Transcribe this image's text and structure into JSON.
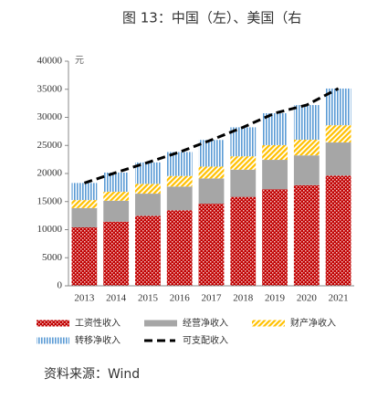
{
  "chart_data": {
    "type": "bar",
    "stacked": true,
    "title": "图 13：中国（左）、美国（右",
    "y_unit": "元",
    "source": "资料来源：Wind",
    "categories": [
      "2013",
      "2014",
      "2015",
      "2016",
      "2017",
      "2018",
      "2019",
      "2020",
      "2021"
    ],
    "series": [
      {
        "name": "工资性收入",
        "color": "#c00000",
        "values": [
          10411,
          11421,
          12459,
          13455,
          14620,
          15829,
          17186,
          17917,
          19629
        ]
      },
      {
        "name": "经营净收入",
        "color": "#a6a6a6",
        "values": [
          3435,
          3732,
          3956,
          4218,
          4502,
          4852,
          5247,
          5307,
          5893
        ]
      },
      {
        "name": "财产净收入",
        "color": "#ffc000",
        "values": [
          1423,
          1588,
          1740,
          1889,
          2107,
          2379,
          2619,
          2791,
          3076
        ]
      },
      {
        "name": "转移净收入",
        "color": "#5b9bd5",
        "values": [
          3042,
          3427,
          3812,
          4259,
          4744,
          5168,
          5680,
          6173,
          6531
        ]
      },
      {
        "name": "可支配收入",
        "color": "#000000",
        "type": "line",
        "values": [
          18311,
          20167,
          21966,
          23821,
          25974,
          28228,
          30733,
          32189,
          35128
        ]
      }
    ],
    "ylim": [
      0,
      40000
    ],
    "yticks": [
      0,
      5000,
      10000,
      15000,
      20000,
      25000,
      30000,
      35000,
      40000
    ]
  }
}
